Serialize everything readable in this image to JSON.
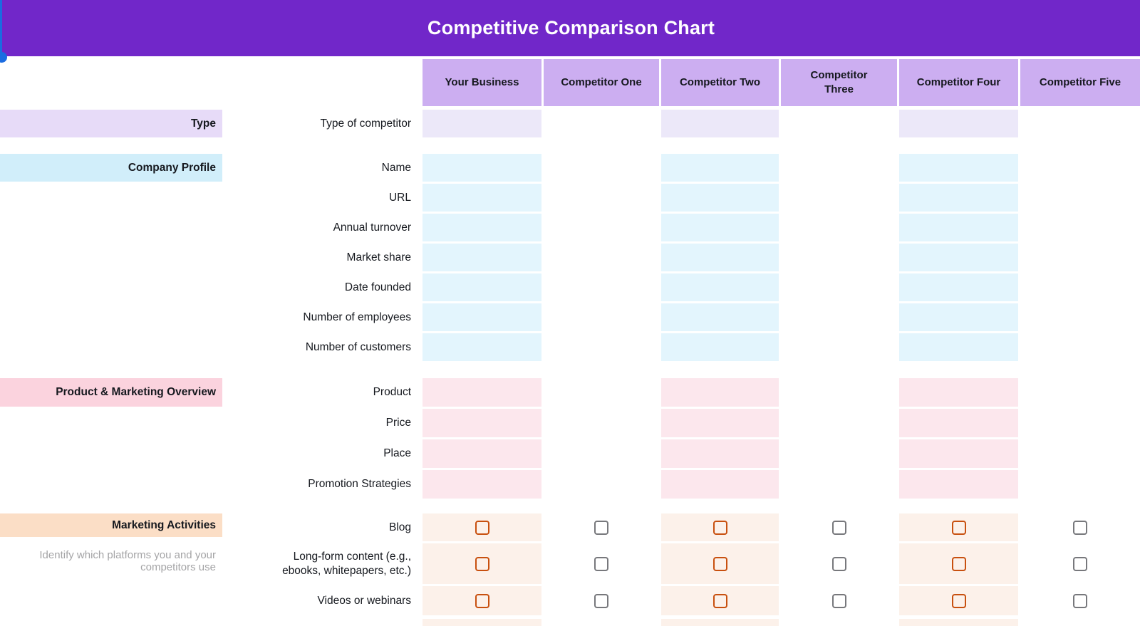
{
  "banner": {
    "title": "Competitive Comparison Chart",
    "bg": "#7127c9",
    "selection_color": "#1b6ce1"
  },
  "header_bg": "#ccaef1",
  "columns": [
    {
      "label": "Your Business",
      "highlighted": true
    },
    {
      "label": "Competitor One",
      "highlighted": false
    },
    {
      "label": "Competitor Two",
      "highlighted": true
    },
    {
      "label": "Competitor Three",
      "highlighted": false
    },
    {
      "label": "Competitor Four",
      "highlighted": true
    },
    {
      "label": "Competitor Five",
      "highlighted": false
    }
  ],
  "themes": {
    "purple": {
      "label_bg": "#e7dbf8",
      "cell_bg": "#ece8f9"
    },
    "blue": {
      "label_bg": "#d1eefa",
      "cell_bg": "#e3f5fd"
    },
    "pink": {
      "label_bg": "#fbd3de",
      "cell_bg": "#fce7ed"
    },
    "orange": {
      "label_bg": "#fbdec6",
      "cell_bg": "#fcf1ea"
    }
  },
  "checkbox": {
    "checked": false,
    "highlight_border": "#c8500f",
    "muted_border": "#77787c"
  },
  "sections": [
    {
      "label": "Type",
      "theme": "purple",
      "rows": [
        {
          "label": "Type of competitor",
          "kind": "text"
        }
      ]
    },
    {
      "label": "Company Profile",
      "theme": "blue",
      "rows": [
        {
          "label": "Name",
          "kind": "text"
        },
        {
          "label": "URL",
          "kind": "text"
        },
        {
          "label": "Annual turnover",
          "kind": "text"
        },
        {
          "label": "Market share",
          "kind": "text"
        },
        {
          "label": "Date founded",
          "kind": "text"
        },
        {
          "label": "Number of employees",
          "kind": "text"
        },
        {
          "label": "Number of customers",
          "kind": "text"
        }
      ]
    },
    {
      "label": "Product & Marketing Overview",
      "theme": "pink",
      "rows": [
        {
          "label": "Product",
          "kind": "text"
        },
        {
          "label": "Price",
          "kind": "text"
        },
        {
          "label": "Place",
          "kind": "text"
        },
        {
          "label": "Promotion Strategies",
          "kind": "text"
        }
      ]
    },
    {
      "label": "Marketing Activities",
      "theme": "orange",
      "caption": "Identify which platforms you and your\ncompetitors use",
      "rows": [
        {
          "label": "Blog",
          "kind": "checkbox"
        },
        {
          "label": "Long-form content (e.g.,\nebooks, whitepapers, etc.)",
          "kind": "checkbox"
        },
        {
          "label": "Videos or webinars",
          "kind": "checkbox"
        }
      ],
      "partial_next_row": true
    }
  ]
}
